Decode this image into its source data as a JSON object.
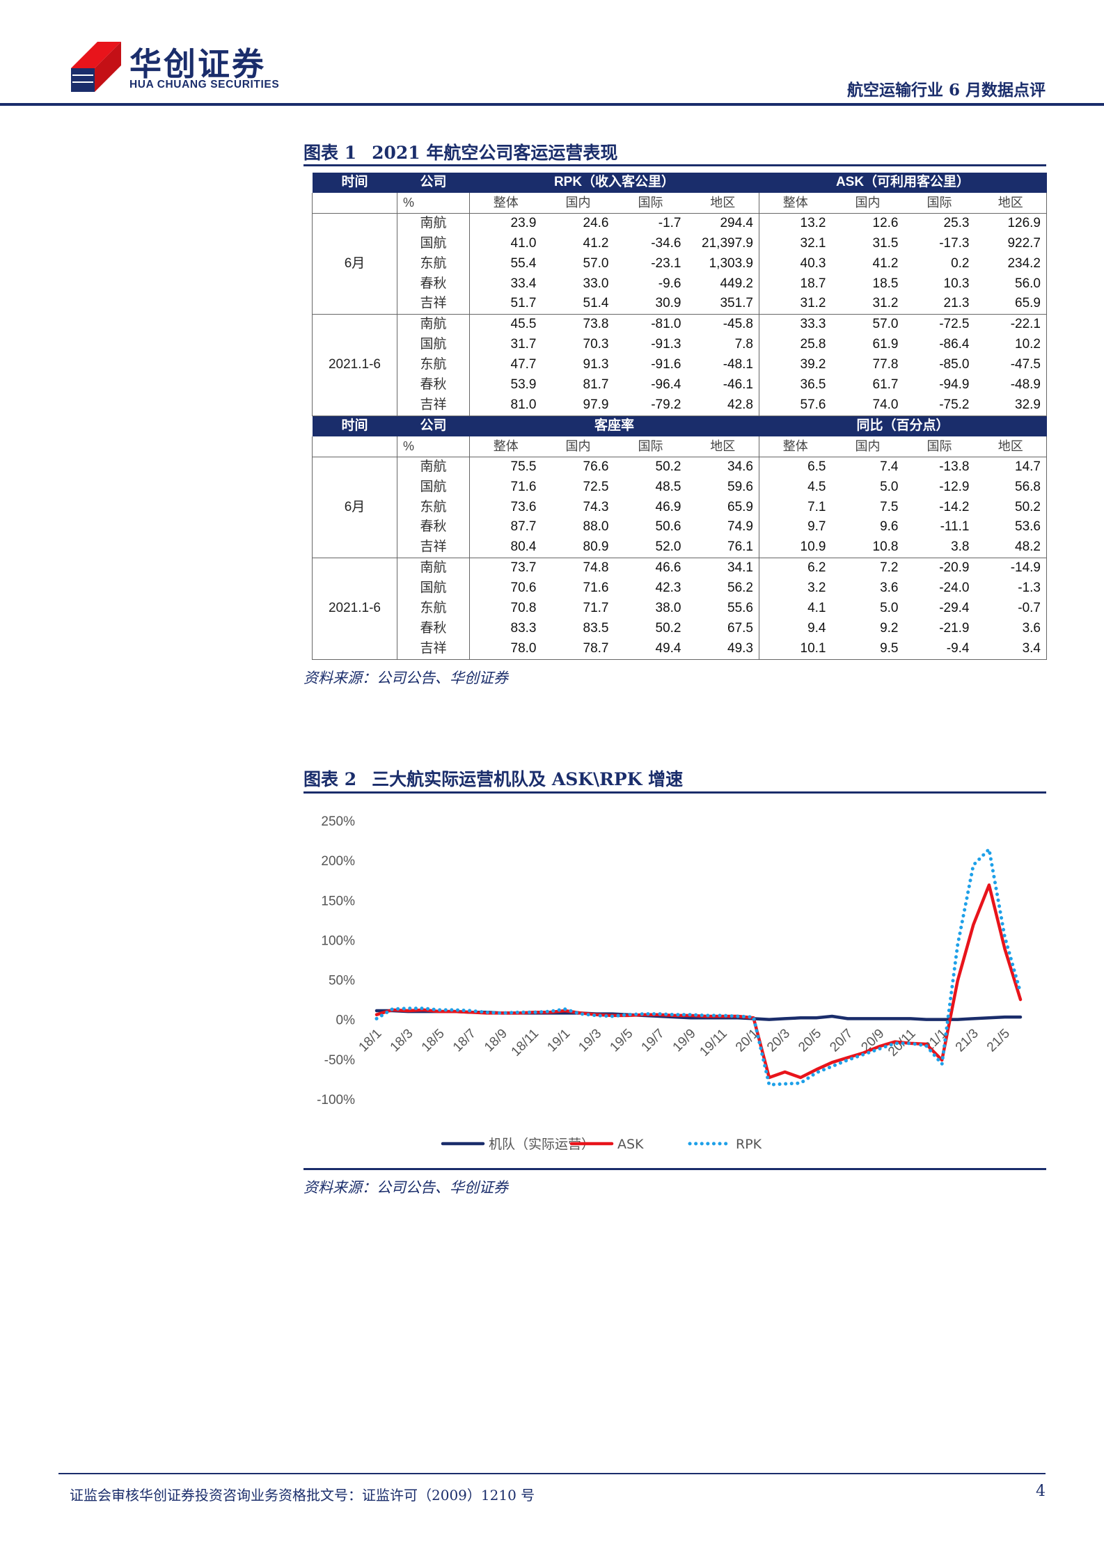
{
  "header": {
    "logo_cn": "华创证券",
    "logo_en": "HUA CHUANG SECURITIES",
    "report_title": "航空运输行业 6 月数据点评"
  },
  "figure1": {
    "label": "图表 1",
    "title": "2021 年航空公司客运运营表现",
    "source": "资料来源：公司公告、华创证券",
    "part1": {
      "col_time": "时间",
      "col_company": "公司",
      "group_a": "RPK（收入客公里）",
      "group_b": "ASK（可利用客公里）",
      "unit": "%",
      "subheads": [
        "整体",
        "国内",
        "国际",
        "地区",
        "整体",
        "国内",
        "国际",
        "地区"
      ],
      "blocks": [
        {
          "period": "6月",
          "rows": [
            {
              "company": "南航",
              "values": [
                "23.9",
                "24.6",
                "-1.7",
                "294.4",
                "13.2",
                "12.6",
                "25.3",
                "126.9"
              ]
            },
            {
              "company": "国航",
              "values": [
                "41.0",
                "41.2",
                "-34.6",
                "21,397.9",
                "32.1",
                "31.5",
                "-17.3",
                "922.7"
              ]
            },
            {
              "company": "东航",
              "values": [
                "55.4",
                "57.0",
                "-23.1",
                "1,303.9",
                "40.3",
                "41.2",
                "0.2",
                "234.2"
              ]
            },
            {
              "company": "春秋",
              "values": [
                "33.4",
                "33.0",
                "-9.6",
                "449.2",
                "18.7",
                "18.5",
                "10.3",
                "56.0"
              ]
            },
            {
              "company": "吉祥",
              "values": [
                "51.7",
                "51.4",
                "30.9",
                "351.7",
                "31.2",
                "31.2",
                "21.3",
                "65.9"
              ]
            }
          ]
        },
        {
          "period": "2021.1-6",
          "rows": [
            {
              "company": "南航",
              "values": [
                "45.5",
                "73.8",
                "-81.0",
                "-45.8",
                "33.3",
                "57.0",
                "-72.5",
                "-22.1"
              ]
            },
            {
              "company": "国航",
              "values": [
                "31.7",
                "70.3",
                "-91.3",
                "7.8",
                "25.8",
                "61.9",
                "-86.4",
                "10.2"
              ]
            },
            {
              "company": "东航",
              "values": [
                "47.7",
                "91.3",
                "-91.6",
                "-48.1",
                "39.2",
                "77.8",
                "-85.0",
                "-47.5"
              ]
            },
            {
              "company": "春秋",
              "values": [
                "53.9",
                "81.7",
                "-96.4",
                "-46.1",
                "36.5",
                "61.7",
                "-94.9",
                "-48.9"
              ]
            },
            {
              "company": "吉祥",
              "values": [
                "81.0",
                "97.9",
                "-79.2",
                "42.8",
                "57.6",
                "74.0",
                "-75.2",
                "32.9"
              ]
            }
          ]
        }
      ]
    },
    "part2": {
      "col_time": "时间",
      "col_company": "公司",
      "group_a": "客座率",
      "group_b": "同比（百分点）",
      "unit": "%",
      "subheads": [
        "整体",
        "国内",
        "国际",
        "地区",
        "整体",
        "国内",
        "国际",
        "地区"
      ],
      "blocks": [
        {
          "period": "6月",
          "rows": [
            {
              "company": "南航",
              "values": [
                "75.5",
                "76.6",
                "50.2",
                "34.6",
                "6.5",
                "7.4",
                "-13.8",
                "14.7"
              ]
            },
            {
              "company": "国航",
              "values": [
                "71.6",
                "72.5",
                "48.5",
                "59.6",
                "4.5",
                "5.0",
                "-12.9",
                "56.8"
              ]
            },
            {
              "company": "东航",
              "values": [
                "73.6",
                "74.3",
                "46.9",
                "65.9",
                "7.1",
                "7.5",
                "-14.2",
                "50.2"
              ]
            },
            {
              "company": "春秋",
              "values": [
                "87.7",
                "88.0",
                "50.6",
                "74.9",
                "9.7",
                "9.6",
                "-11.1",
                "53.6"
              ]
            },
            {
              "company": "吉祥",
              "values": [
                "80.4",
                "80.9",
                "52.0",
                "76.1",
                "10.9",
                "10.8",
                "3.8",
                "48.2"
              ]
            }
          ]
        },
        {
          "period": "2021.1-6",
          "rows": [
            {
              "company": "南航",
              "values": [
                "73.7",
                "74.8",
                "46.6",
                "34.1",
                "6.2",
                "7.2",
                "-20.9",
                "-14.9"
              ]
            },
            {
              "company": "国航",
              "values": [
                "70.6",
                "71.6",
                "42.3",
                "56.2",
                "3.2",
                "3.6",
                "-24.0",
                "-1.3"
              ]
            },
            {
              "company": "东航",
              "values": [
                "70.8",
                "71.7",
                "38.0",
                "55.6",
                "4.1",
                "5.0",
                "-29.4",
                "-0.7"
              ]
            },
            {
              "company": "春秋",
              "values": [
                "83.3",
                "83.5",
                "50.2",
                "67.5",
                "9.4",
                "9.2",
                "-21.9",
                "3.6"
              ]
            },
            {
              "company": "吉祥",
              "values": [
                "78.0",
                "78.7",
                "49.4",
                "49.3",
                "10.1",
                "9.5",
                "-9.4",
                "3.4"
              ]
            }
          ]
        }
      ]
    }
  },
  "figure2": {
    "label": "图表 2",
    "title": "三大航实际运营机队及 ASK\\RPK 增速",
    "source": "资料来源：公司公告、华创证券"
  },
  "chart_data": {
    "type": "line",
    "title": "",
    "xlabel": "",
    "ylabel": "",
    "ylim": [
      -100,
      250
    ],
    "y_ticks": [
      "250%",
      "200%",
      "150%",
      "100%",
      "50%",
      "0%",
      "-50%",
      "-100%"
    ],
    "x": [
      "18/1",
      "18/2",
      "18/3",
      "18/4",
      "18/5",
      "18/6",
      "18/7",
      "18/8",
      "18/9",
      "18/10",
      "18/11",
      "18/12",
      "19/1",
      "19/2",
      "19/3",
      "19/4",
      "19/5",
      "19/6",
      "19/7",
      "19/8",
      "19/9",
      "19/10",
      "19/11",
      "19/12",
      "20/1",
      "20/2",
      "20/3",
      "20/4",
      "20/5",
      "20/6",
      "20/7",
      "20/8",
      "20/9",
      "20/10",
      "20/11",
      "20/12",
      "21/1",
      "21/2",
      "21/3",
      "21/4",
      "21/5",
      "21/6"
    ],
    "x_tick_labels": [
      "18/1",
      "18/3",
      "18/5",
      "18/7",
      "18/9",
      "18/11",
      "19/1",
      "19/3",
      "19/5",
      "19/7",
      "19/9",
      "19/11",
      "20/1",
      "20/3",
      "20/5",
      "20/7",
      "20/9",
      "20/11",
      "21/1",
      "21/3",
      "21/5"
    ],
    "legend_position": "bottom",
    "series": [
      {
        "name": "机队（实际运营）",
        "color": "#1a2d6b",
        "style": "solid",
        "values": [
          12,
          12,
          11,
          11,
          11,
          11,
          10,
          10,
          9,
          9,
          9,
          9,
          9,
          9,
          8,
          8,
          7,
          6,
          5,
          4,
          3,
          3,
          3,
          3,
          2,
          1,
          2,
          3,
          3,
          5,
          2,
          2,
          2,
          2,
          2,
          1,
          1,
          1,
          2,
          3,
          4,
          4
        ]
      },
      {
        "name": "ASK",
        "color": "#e8141b",
        "style": "solid",
        "values": [
          7,
          13,
          12,
          13,
          11,
          11,
          10,
          9,
          9,
          9,
          10,
          10,
          12,
          9,
          7,
          6,
          6,
          7,
          7,
          6,
          6,
          5,
          5,
          5,
          3,
          -72,
          -65,
          -72,
          -62,
          -53,
          -47,
          -41,
          -33,
          -27,
          -29,
          -30,
          -50,
          50,
          120,
          170,
          90,
          26
        ]
      },
      {
        "name": "RPK",
        "color": "#1ea0e8",
        "style": "dotted",
        "values": [
          2,
          14,
          15,
          15,
          13,
          13,
          12,
          10,
          9,
          10,
          10,
          11,
          14,
          8,
          6,
          5,
          7,
          8,
          8,
          7,
          7,
          6,
          6,
          5,
          4,
          -81,
          -80,
          -79,
          -66,
          -58,
          -50,
          -43,
          -36,
          -29,
          -29,
          -32,
          -55,
          95,
          195,
          215,
          105,
          35
        ]
      }
    ]
  },
  "footer": {
    "license": "证监会审核华创证券投资咨询业务资格批文号：证监许可（2009）1210 号",
    "page": "4"
  }
}
